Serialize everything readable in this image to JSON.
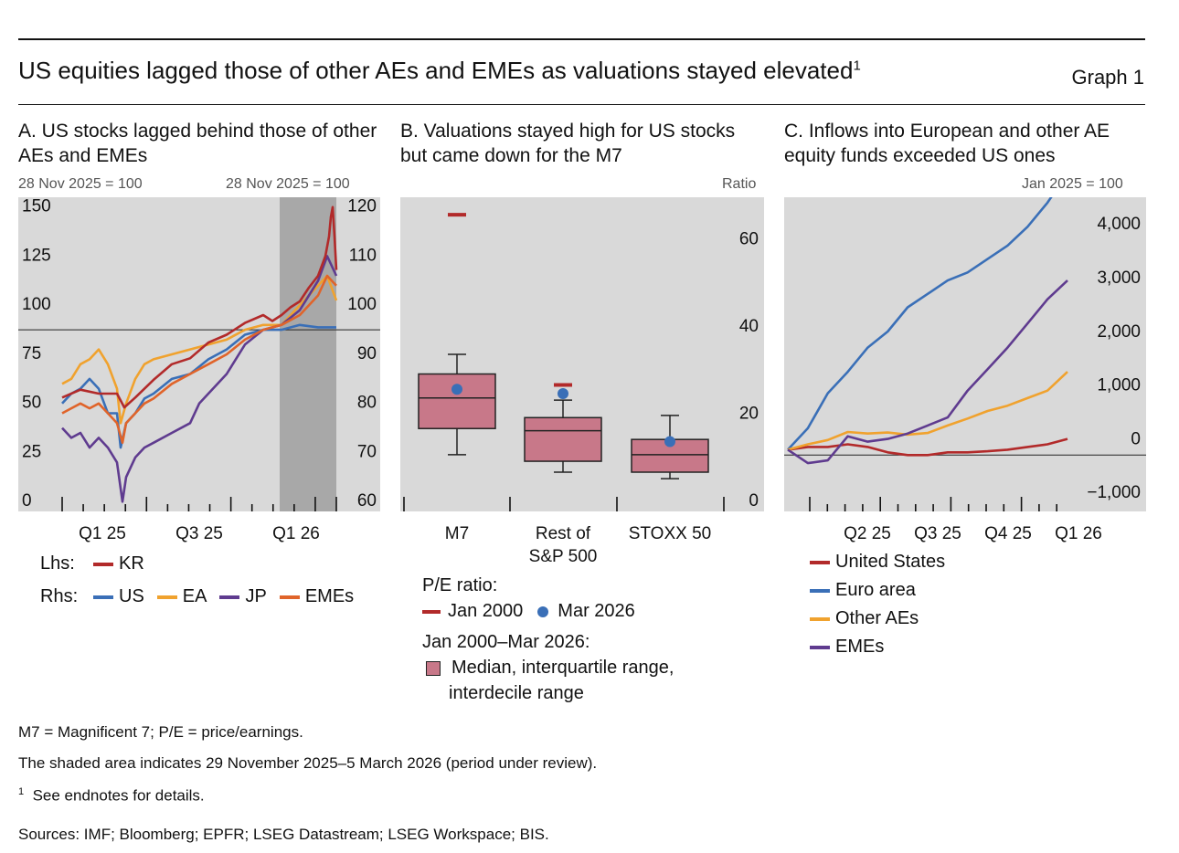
{
  "header": {
    "title": "US equities lagged those of other AEs and EMEs as valuations stayed elevated",
    "title_note": "1",
    "graph_label": "Graph 1"
  },
  "panel_a": {
    "title": "A. US stocks lagged behind those of other AEs and EMEs",
    "unit_left": "28 Nov 2025 = 100",
    "unit_right": "28 Nov 2025 = 100",
    "legend": {
      "lhs_label": "Lhs:",
      "rhs_label": "Rhs:",
      "lhs": [
        {
          "name": "KR",
          "color": "#b22a2a"
        }
      ],
      "rhs": [
        {
          "name": "US",
          "color": "#3a6fb7"
        },
        {
          "name": "EA",
          "color": "#f0a22e"
        },
        {
          "name": "JP",
          "color": "#5f3b8f"
        },
        {
          "name": "EMEs",
          "color": "#e0642a"
        }
      ]
    }
  },
  "panel_b": {
    "title": "B. Valuations stayed high for US stocks but came down for the M7",
    "unit": "Ratio",
    "legend": {
      "heading1": "P/E ratio:",
      "item1": "Jan 2000",
      "item2": "Mar 2026",
      "heading2": "Jan 2000–Mar 2026:",
      "item3_line1": "Median, interquartile range,",
      "item3_line2": "interdecile range"
    }
  },
  "panel_c": {
    "title": "C. Inflows into European and other AE equity funds exceeded US ones",
    "unit": "Jan 2025 = 100",
    "legend": [
      {
        "name": "United States",
        "color": "#b22a2a"
      },
      {
        "name": "Euro area",
        "color": "#3a6fb7"
      },
      {
        "name": "Other AEs",
        "color": "#f0a22e"
      },
      {
        "name": "EMEs",
        "color": "#5f3b8f"
      }
    ]
  },
  "footnotes": {
    "abbrev": "M7 = Magnificent 7; P/E = price/earnings.",
    "shaded": "The shaded area indicates 29 November 2025–5 March 2026 (period under review).",
    "note_num": "1",
    "note_text": "See endnotes for details.",
    "sources": "Sources: IMF; Bloomberg; EPFR; LSEG Datastream; LSEG Workspace; BIS."
  },
  "chart_data": [
    {
      "type": "line",
      "id": "A",
      "x_tick_labels": [
        "Q1 25",
        "Q3 25",
        "Q1 26"
      ],
      "x_range": [
        0,
        15
      ],
      "shaded_range": [
        11.9,
        15
      ],
      "y_left": {
        "range": [
          0,
          160
        ],
        "ticks": [
          0,
          25,
          50,
          75,
          100,
          125,
          150
        ]
      },
      "y_right": {
        "range": [
          60,
          124
        ],
        "ticks": [
          60,
          70,
          80,
          90,
          100,
          110,
          120
        ]
      },
      "reference_line_right": 97,
      "series": [
        {
          "name": "KR",
          "axis": "left",
          "color": "#b22a2a",
          "x": [
            0,
            1,
            2,
            3,
            3.4,
            4,
            5,
            6,
            7,
            8,
            9,
            10,
            11,
            11.5,
            12,
            12.5,
            13,
            13.5,
            14,
            14.4,
            14.6,
            14.7,
            14.8,
            14.9,
            15
          ],
          "values": [
            58,
            62,
            60,
            60,
            53,
            58,
            67,
            75,
            78,
            86,
            90,
            96,
            100,
            97,
            100,
            104,
            107,
            114,
            120,
            130,
            140,
            150,
            155,
            140,
            123
          ]
        },
        {
          "name": "US",
          "axis": "right",
          "color": "#3a6fb7",
          "x": [
            0,
            0.5,
            1,
            1.5,
            2,
            2.5,
            3,
            3.2,
            3.5,
            4,
            4.5,
            5,
            6,
            7,
            8,
            9,
            10,
            11,
            12,
            13,
            14,
            15
          ],
          "values": [
            82,
            84,
            85,
            87,
            85,
            80,
            80,
            73,
            78,
            80,
            83,
            84,
            87,
            88,
            91,
            93,
            96,
            97,
            97,
            98,
            97.5,
            97.5
          ]
        },
        {
          "name": "EA",
          "axis": "right",
          "color": "#f0a22e",
          "x": [
            0,
            0.5,
            1,
            1.5,
            2,
            2.5,
            3,
            3.2,
            3.5,
            4,
            4.5,
            5,
            6,
            7,
            8,
            9,
            10,
            11,
            12,
            13,
            14,
            14.5,
            15
          ],
          "values": [
            86,
            87,
            90,
            91,
            93,
            90,
            85,
            78,
            82,
            87,
            90,
            91,
            92,
            93,
            94,
            95,
            97,
            98,
            98,
            102,
            106,
            108,
            103
          ]
        },
        {
          "name": "JP",
          "axis": "right",
          "color": "#5f3b8f",
          "x": [
            0,
            0.5,
            1,
            1.5,
            2,
            2.5,
            3,
            3.3,
            3.5,
            4,
            4.5,
            5,
            6,
            7,
            7.5,
            8,
            9,
            10,
            11,
            12,
            13,
            14,
            14.5,
            15
          ],
          "values": [
            77,
            75,
            76,
            73,
            75,
            73,
            70,
            62,
            67,
            71,
            73,
            74,
            76,
            78,
            82,
            84,
            88,
            94,
            97,
            98,
            101,
            107,
            112,
            108
          ]
        },
        {
          "name": "EMEs",
          "axis": "right",
          "color": "#e0642a",
          "x": [
            0,
            0.5,
            1,
            1.5,
            2,
            2.5,
            3,
            3.3,
            3.5,
            4,
            4.5,
            5,
            6,
            7,
            8,
            9,
            10,
            11,
            12,
            13,
            14,
            14.5,
            15
          ],
          "values": [
            80,
            81,
            82,
            81,
            82,
            80,
            78,
            74,
            78,
            80,
            82,
            83,
            86,
            88,
            90,
            92,
            95,
            97,
            98,
            100,
            104,
            108,
            106
          ]
        }
      ]
    },
    {
      "type": "box",
      "id": "B",
      "categories": [
        "M7",
        "Rest of S&P 500",
        "STOXX 50"
      ],
      "category_labels": [
        [
          "M7"
        ],
        [
          "Rest of",
          "S&P 500"
        ],
        [
          "STOXX 50"
        ]
      ],
      "ylabel": "Ratio",
      "ylim": [
        0,
        72
      ],
      "y_ticks": [
        0,
        20,
        40,
        60
      ],
      "boxes": [
        {
          "p10": 13,
          "q1": 19,
          "median": 26,
          "q3": 31.5,
          "p90": 36
        },
        {
          "p10": 9,
          "q1": 11.5,
          "median": 18.5,
          "q3": 21.5,
          "p90": 25.5
        },
        {
          "p10": 7.5,
          "q1": 9,
          "median": 13,
          "q3": 16.5,
          "p90": 22
        }
      ],
      "jan_2000": [
        68,
        29,
        null
      ],
      "mar_2026": [
        28,
        27,
        16
      ]
    },
    {
      "type": "line",
      "id": "C",
      "x_tick_labels": [
        "Q2 25",
        "Q3 25",
        "Q4 25",
        "Q1 26"
      ],
      "x_range": [
        0,
        14
      ],
      "y_ticks": [
        -1000,
        0,
        1000,
        2000,
        3000,
        4000
      ],
      "y_range": [
        -1150,
        4700
      ],
      "reference_line": -100,
      "series": [
        {
          "name": "United States",
          "color": "#b22a2a",
          "x": [
            0,
            1,
            2,
            3,
            4,
            5,
            6,
            7,
            8,
            9,
            10,
            11,
            12,
            13,
            14
          ],
          "values": [
            0,
            50,
            50,
            100,
            50,
            -50,
            -100,
            -100,
            -50,
            -50,
            -30,
            0,
            50,
            100,
            200
          ]
        },
        {
          "name": "Euro area",
          "color": "#3a6fb7",
          "x": [
            0,
            1,
            2,
            3,
            4,
            5,
            6,
            7,
            8,
            9,
            10,
            11,
            12,
            13,
            14
          ],
          "values": [
            0,
            400,
            1050,
            1450,
            1900,
            2200,
            2650,
            2900,
            3150,
            3300,
            3550,
            3800,
            4150,
            4600,
            5150
          ]
        },
        {
          "name": "Other AEs",
          "color": "#f0a22e",
          "x": [
            0,
            1,
            2,
            3,
            4,
            5,
            6,
            7,
            8,
            9,
            10,
            11,
            12,
            13,
            14
          ],
          "values": [
            0,
            100,
            180,
            330,
            300,
            320,
            280,
            310,
            450,
            580,
            720,
            820,
            960,
            1100,
            1450
          ]
        },
        {
          "name": "EMEs",
          "color": "#5f3b8f",
          "x": [
            0,
            1,
            2,
            3,
            4,
            5,
            6,
            7,
            8,
            9,
            10,
            11,
            12,
            13,
            14
          ],
          "values": [
            0,
            -250,
            -200,
            250,
            150,
            200,
            300,
            450,
            600,
            1100,
            1500,
            1900,
            2350,
            2800,
            3150
          ]
        }
      ]
    }
  ]
}
